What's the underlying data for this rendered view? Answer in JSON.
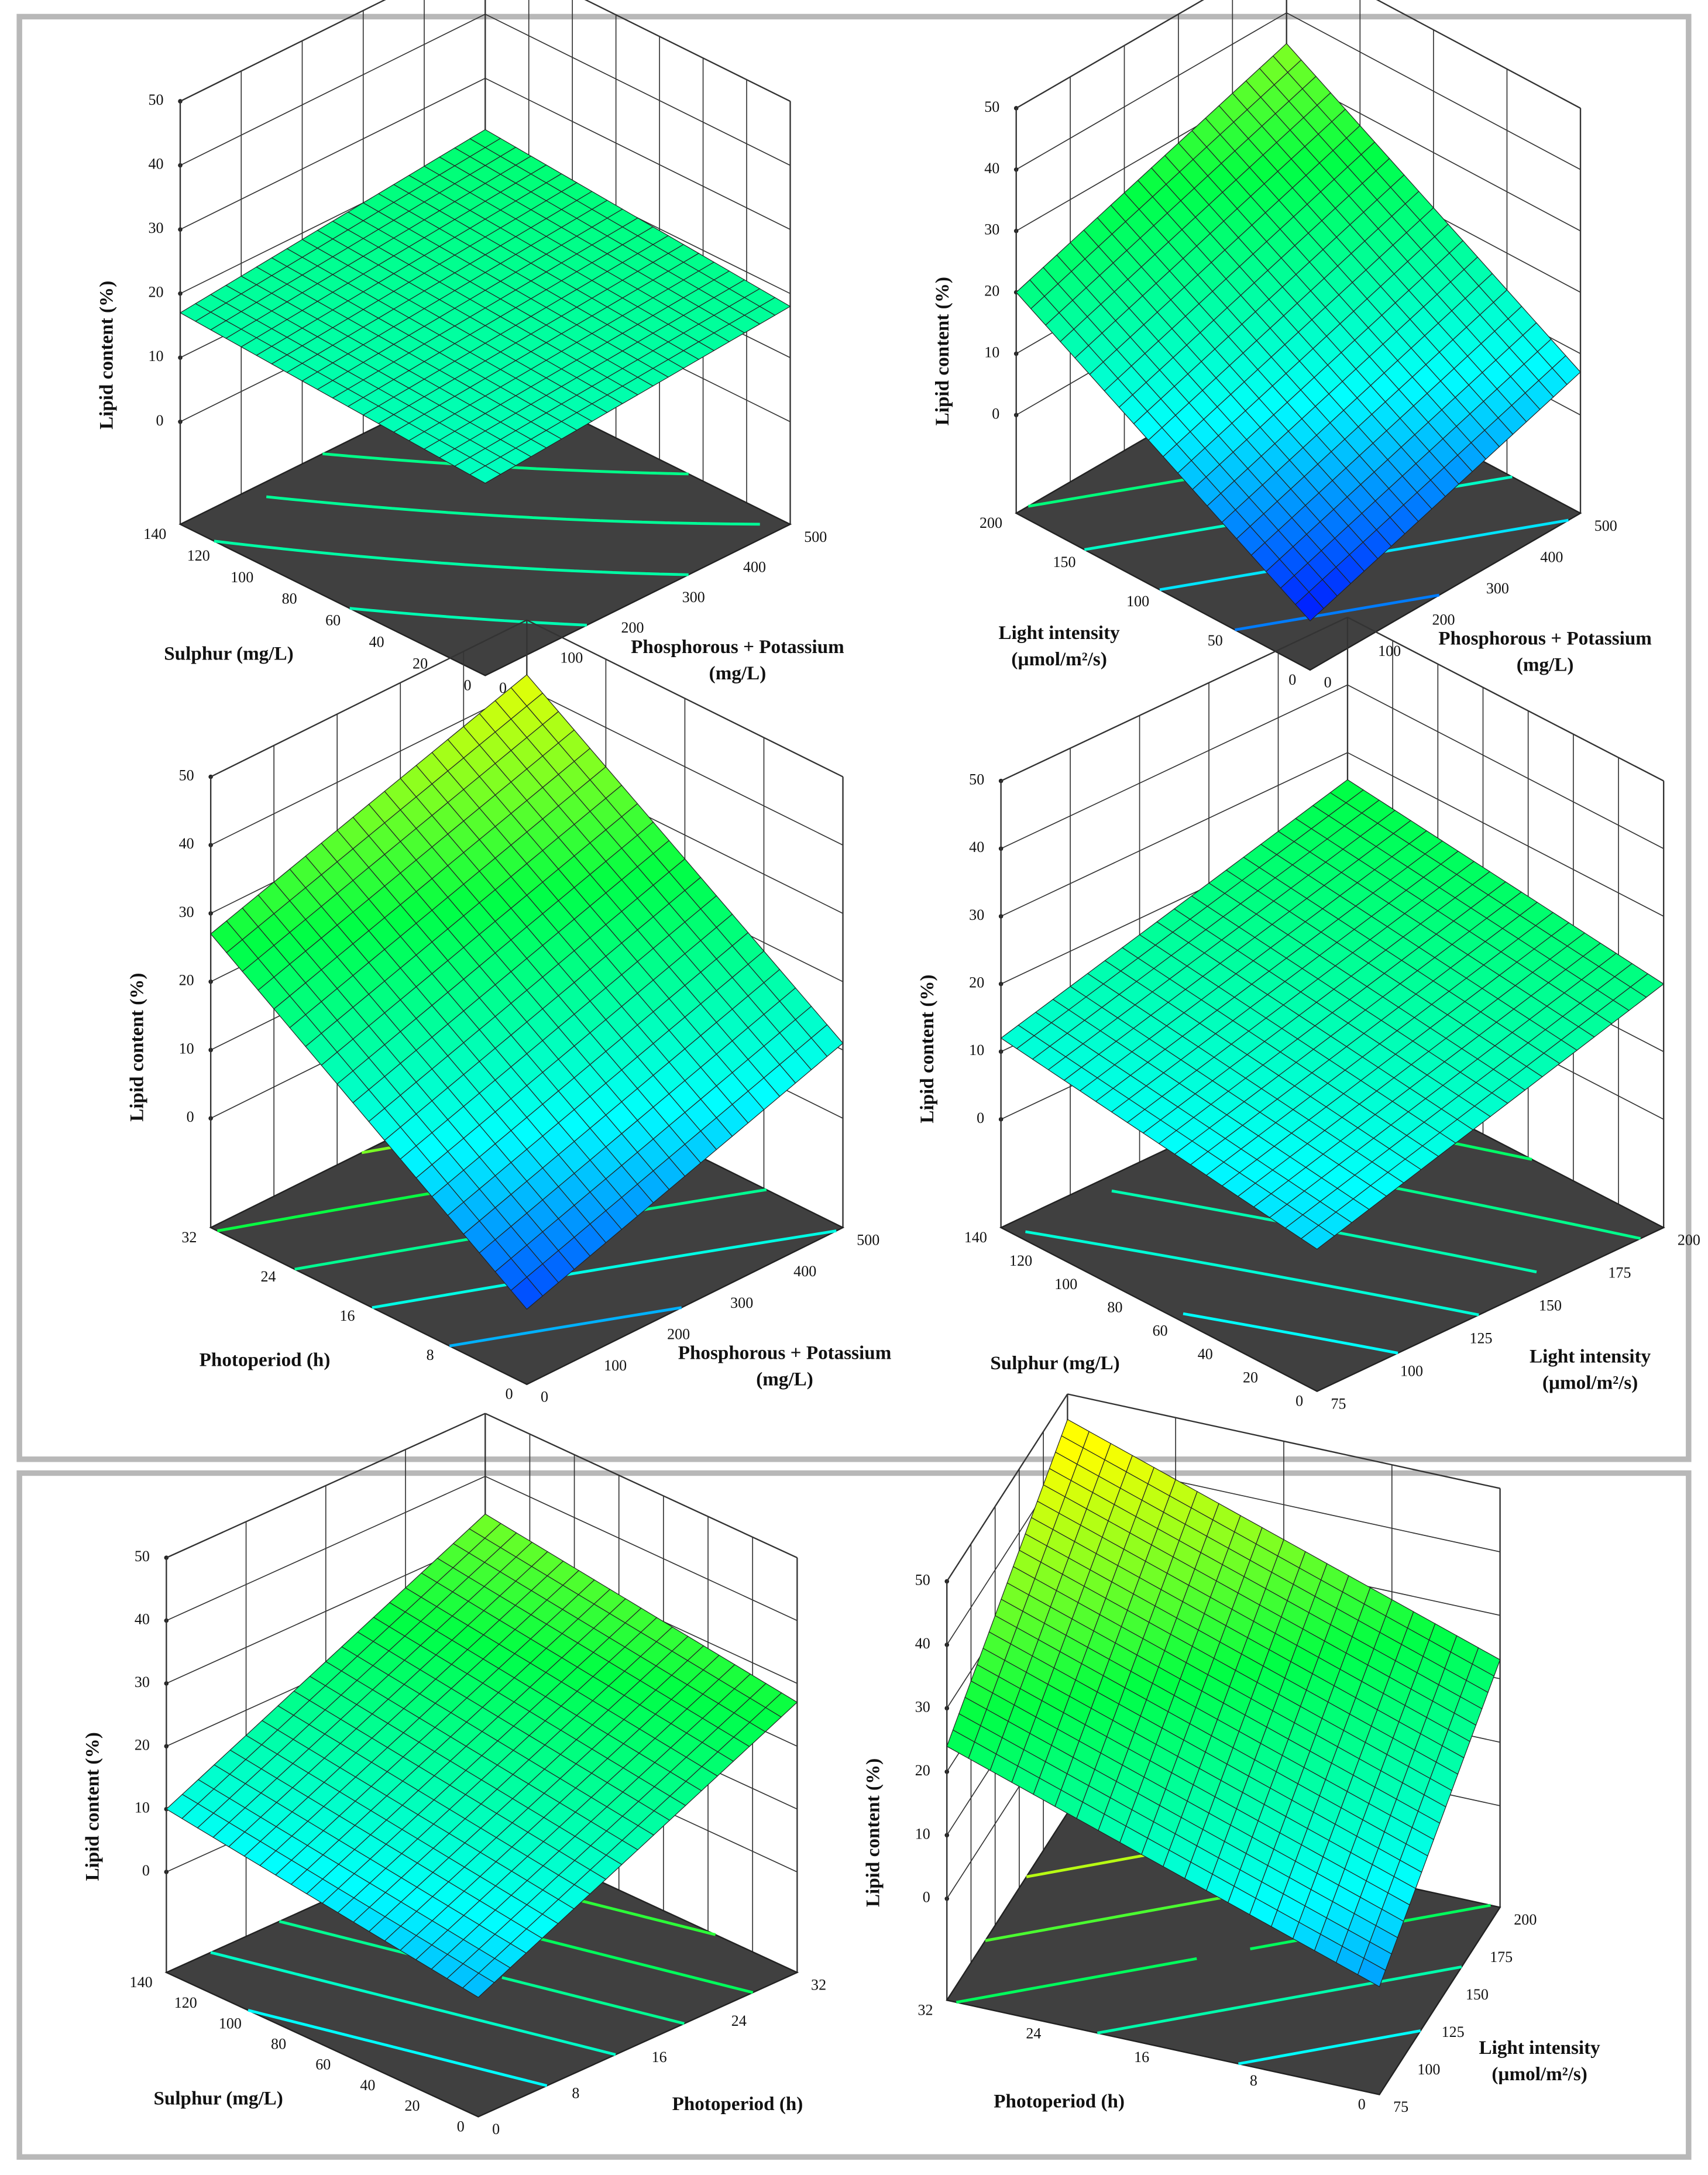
{
  "chart_data": [
    {
      "type": "surface3d",
      "zlabel": "Lipid content (%)",
      "xlabel": [
        "Phosphorous + Potassium",
        "(mg/L)"
      ],
      "ylabel": [
        "Sulphur (mg/L)"
      ],
      "xlim": [
        0,
        500
      ],
      "xticks": [
        0,
        100,
        200,
        300,
        400,
        500
      ],
      "ylim": [
        0,
        140
      ],
      "yticks": [
        0,
        20,
        40,
        60,
        80,
        100,
        120,
        140
      ],
      "zlim": [
        -16,
        50
      ],
      "zticks": [
        0,
        10,
        20,
        30,
        40,
        50
      ],
      "z": [
        [
          14,
          18
        ],
        [
          17,
          22
        ]
      ],
      "colormap": [
        "#0000ff",
        "#00ffff",
        "#00ff44",
        "#ffff00"
      ],
      "floor_color": "#404040"
    },
    {
      "type": "surface3d",
      "zlabel": "Lipid content (%)",
      "xlabel": [
        "Phosphorous + Potassium",
        "(mg/L)"
      ],
      "ylabel": [
        "Light intensity",
        "(µmol/m²/s)"
      ],
      "xlim": [
        0,
        500
      ],
      "xticks": [
        0,
        100,
        200,
        300,
        400,
        500
      ],
      "ylim": [
        0,
        200
      ],
      "yticks": [
        0,
        50,
        100,
        150,
        200
      ],
      "zlim": [
        -16,
        50
      ],
      "zticks": [
        0,
        10,
        20,
        30,
        40,
        50
      ],
      "z": [
        [
          -8,
          7
        ],
        [
          20,
          35
        ]
      ],
      "colormap": [
        "#0000ff",
        "#00ffff",
        "#00ff44",
        "#ffff00"
      ],
      "floor_color": "#404040"
    },
    {
      "type": "surface3d",
      "zlabel": "Lipid content (%)",
      "xlabel": [
        "Phosphorous + Potassium",
        "(mg/L)"
      ],
      "ylabel": [
        "Photoperiod (h)"
      ],
      "xlim": [
        0,
        500
      ],
      "xticks": [
        0,
        100,
        200,
        300,
        400,
        500
      ],
      "ylim": [
        0,
        32
      ],
      "yticks": [
        0,
        8,
        16,
        24,
        32
      ],
      "zlim": [
        -16,
        50
      ],
      "zticks": [
        0,
        10,
        20,
        30,
        40,
        50
      ],
      "z": [
        [
          -5,
          11
        ],
        [
          27,
          42
        ]
      ],
      "colormap": [
        "#0000ff",
        "#00ffff",
        "#00ff44",
        "#ffff00"
      ],
      "floor_color": "#404040"
    },
    {
      "type": "surface3d",
      "zlabel": "Lipid content (%)",
      "xlabel": [
        "Light intensity",
        "(µmol/m²/s)"
      ],
      "ylabel": [
        "Sulphur (mg/L)"
      ],
      "xlim": [
        75,
        200
      ],
      "xticks": [
        75,
        100,
        125,
        150,
        175,
        200
      ],
      "ylim": [
        0,
        140
      ],
      "yticks": [
        0,
        20,
        40,
        60,
        80,
        100,
        120,
        140
      ],
      "zlim": [
        -16,
        50
      ],
      "zticks": [
        0,
        10,
        20,
        30,
        40,
        50
      ],
      "z": [
        [
          5,
          20
        ],
        [
          12,
          26
        ]
      ],
      "colormap": [
        "#0000ff",
        "#00ffff",
        "#00ff44",
        "#ffff00"
      ],
      "floor_color": "#404040"
    },
    {
      "type": "surface3d",
      "zlabel": "Lipid content (%)",
      "xlabel": [
        "Photoperiod (h)"
      ],
      "ylabel": [
        "Sulphur (mg/L)"
      ],
      "xlim": [
        0,
        32
      ],
      "xticks": [
        0,
        8,
        16,
        24,
        32
      ],
      "ylim": [
        0,
        140
      ],
      "yticks": [
        0,
        20,
        40,
        60,
        80,
        100,
        120,
        140
      ],
      "zlim": [
        -16,
        50
      ],
      "zticks": [
        0,
        10,
        20,
        30,
        40,
        50
      ],
      "z": [
        [
          3,
          27
        ],
        [
          10,
          34
        ]
      ],
      "colormap": [
        "#0000ff",
        "#00ffff",
        "#00ff44",
        "#ffff00"
      ],
      "floor_color": "#404040"
    },
    {
      "type": "surface3d",
      "zlabel": "Lipid content (%)",
      "xlabel": [
        "Light intensity",
        "(µmol/m²/s)"
      ],
      "ylabel": [
        "Photoperiod (h)"
      ],
      "xlim": [
        75,
        200
      ],
      "xticks": [
        75,
        100,
        125,
        150,
        175,
        200
      ],
      "ylim": [
        0,
        32
      ],
      "yticks": [
        0,
        8,
        16,
        24,
        32
      ],
      "zlim": [
        -16,
        50
      ],
      "zticks": [
        0,
        10,
        20,
        30,
        40,
        50
      ],
      "z": [
        [
          1,
          23
        ],
        [
          24,
          46
        ]
      ],
      "colormap": [
        "#0000ff",
        "#00ffff",
        "#00ff44",
        "#ffff00"
      ],
      "floor_color": "#404040"
    }
  ]
}
